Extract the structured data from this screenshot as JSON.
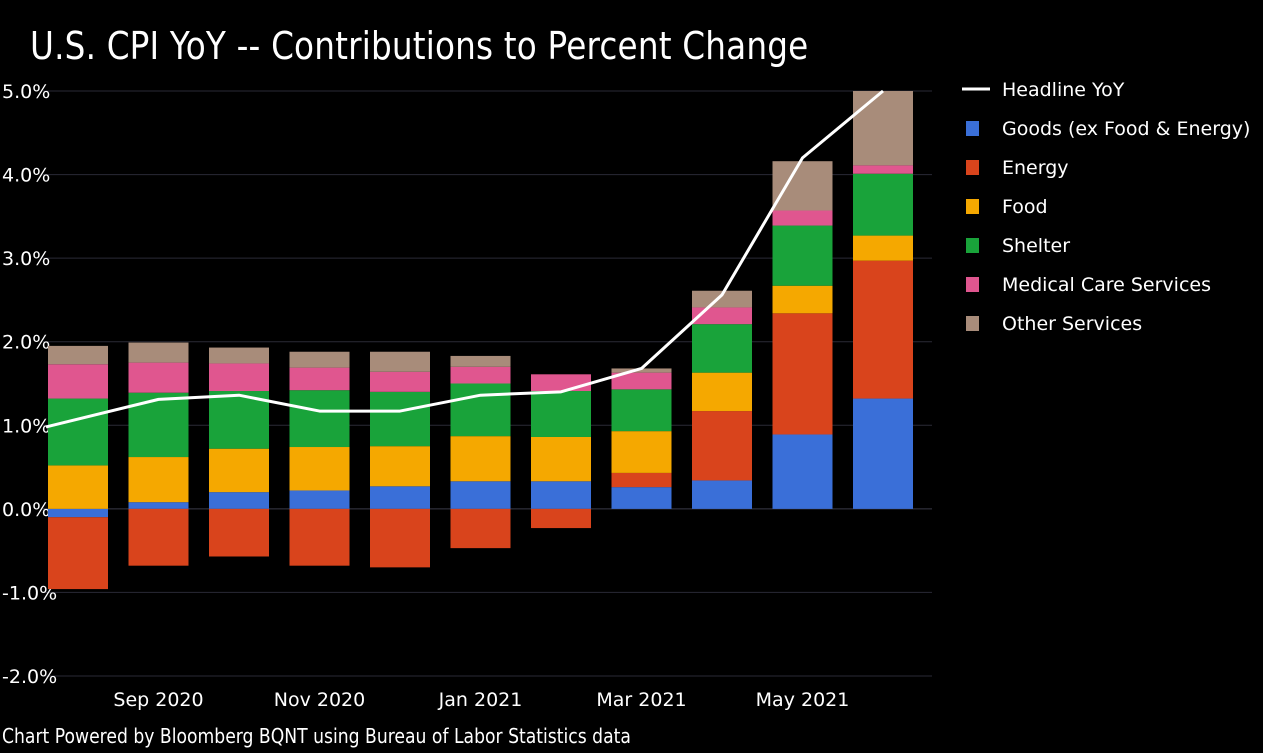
{
  "chart_data": {
    "type": "bar",
    "stacked": true,
    "title": "U.S. CPI YoY -- Contributions to Percent Change",
    "footer": "Chart Powered by Bloomberg BQNT using Bureau of Labor Statistics data",
    "xlabel": "",
    "ylabel": "",
    "ylim": [
      -2.0,
      5.0
    ],
    "yticks": [
      "5.0%",
      "4.0%",
      "3.0%",
      "2.0%",
      "1.0%",
      "0.0%",
      "-1.0%",
      "-2.0%"
    ],
    "ytick_values": [
      5,
      4,
      3,
      2,
      1,
      0,
      -1,
      -2
    ],
    "categories": [
      "Aug 2020",
      "Sep 2020",
      "Oct 2020",
      "Nov 2020",
      "Dec 2020",
      "Jan 2021",
      "Feb 2021",
      "Mar 2021",
      "Apr 2021",
      "May 2021",
      "Jun 2021"
    ],
    "xtick_labels": [
      "Sep 2020",
      "Nov 2020",
      "Jan 2021",
      "Mar 2021",
      "May 2021"
    ],
    "xtick_indices": [
      1,
      3,
      5,
      7,
      9
    ],
    "grid": true,
    "legend_position": "right",
    "series": [
      {
        "name": "Goods (ex Food & Energy)",
        "color": "#3a6fd8",
        "values": [
          -0.1,
          0.08,
          0.2,
          0.22,
          0.27,
          0.33,
          0.33,
          0.26,
          0.34,
          0.89,
          1.32
        ]
      },
      {
        "name": "Energy",
        "color": "#d9441c",
        "values": [
          -0.86,
          -0.68,
          -0.57,
          -0.68,
          -0.7,
          -0.47,
          -0.23,
          0.17,
          0.83,
          1.45,
          1.65
        ]
      },
      {
        "name": "Food",
        "color": "#f5a800",
        "values": [
          0.52,
          0.54,
          0.52,
          0.52,
          0.48,
          0.54,
          0.53,
          0.5,
          0.46,
          0.33,
          0.3
        ]
      },
      {
        "name": "Shelter",
        "color": "#19a33a",
        "values": [
          0.8,
          0.77,
          0.69,
          0.68,
          0.65,
          0.63,
          0.55,
          0.5,
          0.58,
          0.72,
          0.74
        ]
      },
      {
        "name": "Medical Care Services",
        "color": "#e0568f",
        "values": [
          0.41,
          0.36,
          0.33,
          0.27,
          0.24,
          0.2,
          0.2,
          0.2,
          0.2,
          0.18,
          0.1
        ]
      },
      {
        "name": "Other Services",
        "color": "#a88c7a",
        "values": [
          0.22,
          0.24,
          0.19,
          0.19,
          0.24,
          0.13,
          0.0,
          0.05,
          0.2,
          0.59,
          0.89
        ]
      }
    ],
    "line_series": {
      "name": "Headline YoY",
      "color": "#ffffff",
      "values": [
        0.98,
        1.31,
        1.36,
        1.17,
        1.17,
        1.36,
        1.4,
        1.68,
        2.56,
        4.2,
        5.0
      ]
    }
  }
}
